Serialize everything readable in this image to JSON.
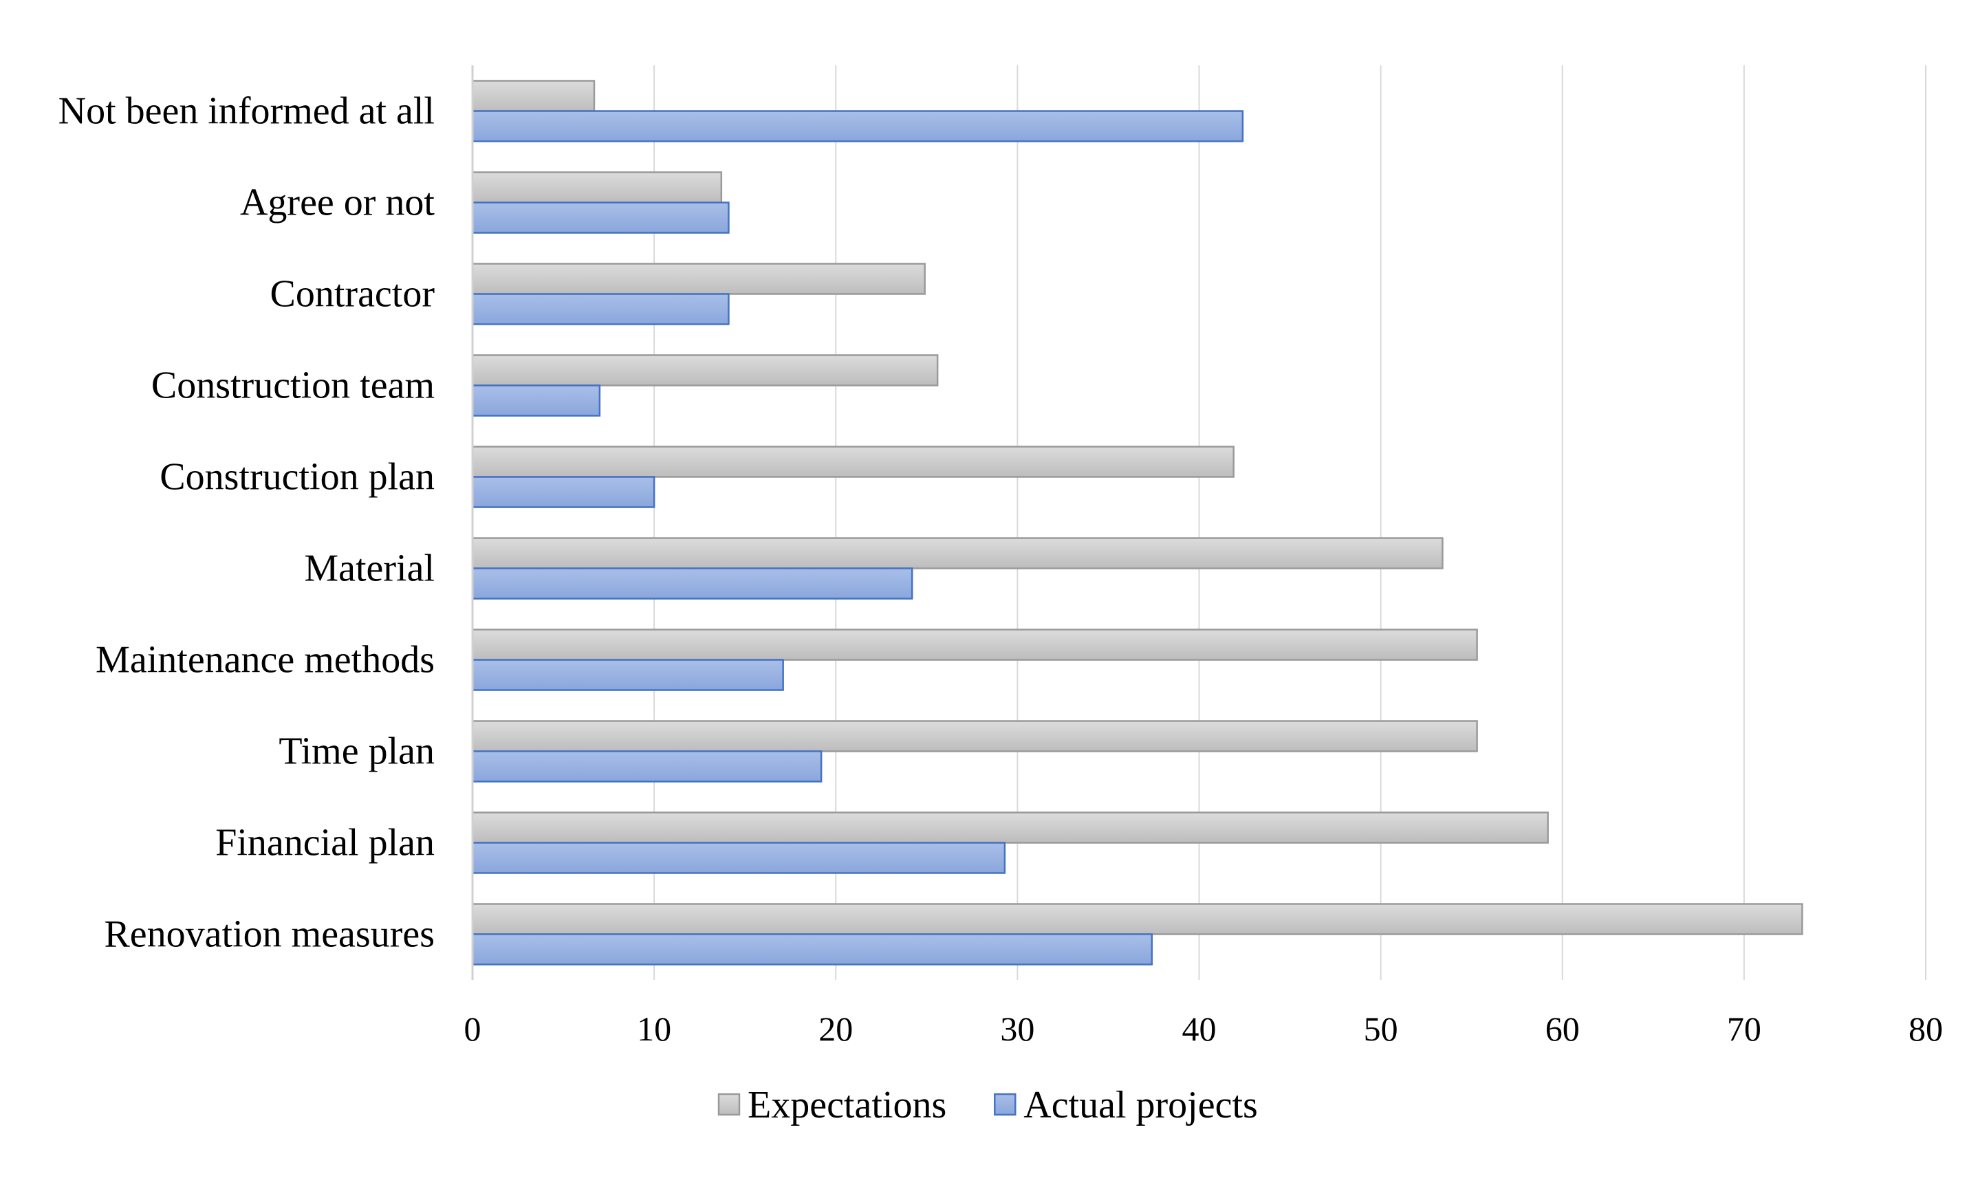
{
  "chart_data": {
    "type": "bar",
    "orientation": "horizontal",
    "title": "",
    "xlabel": "",
    "ylabel": "",
    "xlim": [
      0,
      80
    ],
    "x_ticks": [
      0,
      10,
      20,
      30,
      40,
      50,
      60,
      70,
      80
    ],
    "grid": "vertical",
    "legend_position": "bottom",
    "categories": [
      "Not been informed at all",
      "Agree or not",
      "Contractor",
      "Construction team",
      "Construction plan",
      "Material",
      "Maintenance methods",
      "Time plan",
      "Financial plan",
      "Renovation measures"
    ],
    "series": [
      {
        "name": "Expectations",
        "color": "#c8c8c8",
        "edge_color": "#9a9a9a",
        "values": [
          6.7,
          13.7,
          24.9,
          25.6,
          41.9,
          53.4,
          55.3,
          55.3,
          59.2,
          73.2
        ]
      },
      {
        "name": "Actual projects",
        "color": "#8faadc",
        "edge_color": "#4472c4",
        "values": [
          42.4,
          14.1,
          14.1,
          7.0,
          10.0,
          24.2,
          17.1,
          19.2,
          29.3,
          37.4
        ]
      }
    ]
  }
}
